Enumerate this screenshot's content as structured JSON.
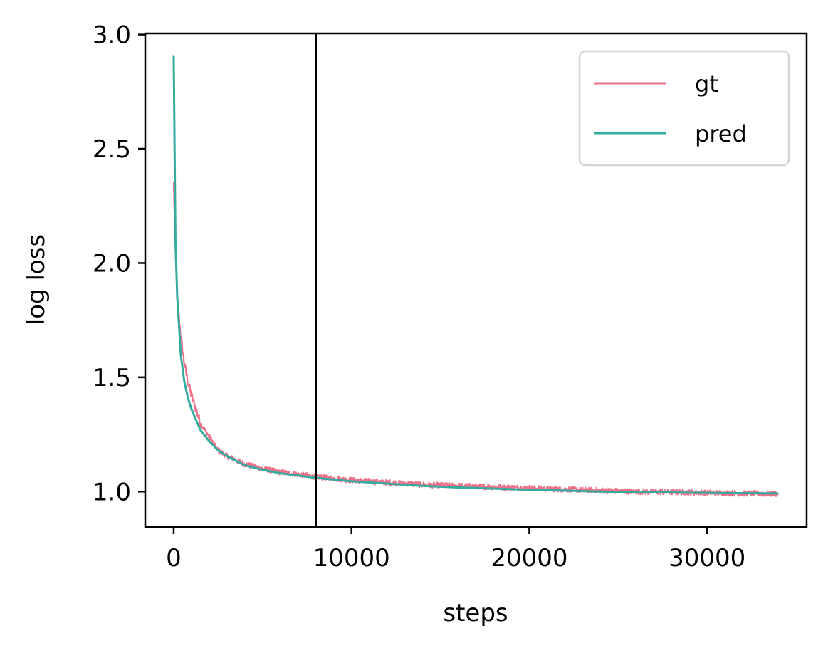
{
  "chart_data": {
    "type": "line",
    "title": "",
    "xlabel": "steps",
    "ylabel": "log loss",
    "xlim": [
      -1600,
      35600
    ],
    "ylim": [
      0.845,
      3.005
    ],
    "x_ticks": [
      0,
      10000,
      20000,
      30000
    ],
    "y_ticks": [
      1.0,
      1.5,
      2.0,
      2.5,
      3.0
    ],
    "x_tick_labels": [
      "0",
      "10000",
      "20000",
      "30000"
    ],
    "y_tick_labels": [
      "1.0",
      "1.5",
      "2.0",
      "2.5",
      "3.0"
    ],
    "grid": false,
    "legend_position": "top-right",
    "vertical_line_x": 8000,
    "series": [
      {
        "name": "gt",
        "color": "#f0728a",
        "noisy": true,
        "x": [
          0,
          100,
          200,
          400,
          600,
          800,
          1000,
          1500,
          2000,
          2500,
          3000,
          4000,
          5000,
          6000,
          7000,
          8000,
          10000,
          12000,
          14000,
          16000,
          18000,
          20000,
          22000,
          24000,
          26000,
          28000,
          30000,
          32000,
          34000
        ],
        "values": [
          2.35,
          2.05,
          1.85,
          1.68,
          1.56,
          1.48,
          1.42,
          1.3,
          1.24,
          1.18,
          1.155,
          1.12,
          1.1,
          1.085,
          1.075,
          1.065,
          1.05,
          1.04,
          1.03,
          1.025,
          1.02,
          1.015,
          1.01,
          1.005,
          1.0,
          0.998,
          0.995,
          0.992,
          0.99
        ]
      },
      {
        "name": "pred",
        "color": "#35aba0",
        "noisy": false,
        "x": [
          0,
          100,
          200,
          400,
          600,
          800,
          1000,
          1500,
          2000,
          2500,
          3000,
          4000,
          5000,
          6000,
          7000,
          8000,
          10000,
          12000,
          14000,
          16000,
          18000,
          20000,
          22000,
          24000,
          26000,
          28000,
          30000,
          32000,
          34000
        ],
        "values": [
          2.91,
          2.1,
          1.85,
          1.6,
          1.48,
          1.41,
          1.36,
          1.27,
          1.22,
          1.18,
          1.155,
          1.115,
          1.095,
          1.08,
          1.07,
          1.06,
          1.045,
          1.035,
          1.025,
          1.018,
          1.013,
          1.008,
          1.004,
          1.0,
          0.998,
          0.996,
          0.994,
          0.993,
          0.992
        ]
      }
    ]
  }
}
